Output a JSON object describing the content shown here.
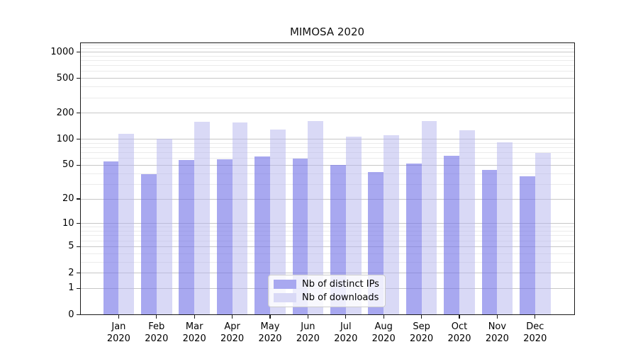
{
  "chart_data": {
    "type": "bar",
    "title": "MIMOSA 2020",
    "categories": [
      "Jan 2020",
      "Feb 2020",
      "Mar 2020",
      "Apr 2020",
      "May 2020",
      "Jun 2020",
      "Jul 2020",
      "Aug 2020",
      "Sep 2020",
      "Oct 2020",
      "Nov 2020",
      "Dec 2020"
    ],
    "series": [
      {
        "name": "Nb of distinct IPs",
        "color": "#a8a8f0",
        "fill": "rgba(115,115,231,0.62)",
        "values": [
          55,
          39,
          57,
          59,
          63,
          60,
          50,
          42,
          52,
          65,
          44,
          37
        ]
      },
      {
        "name": "Nb of downloads",
        "color": "#d9d9f6",
        "fill": "rgba(179,179,237,0.5)",
        "values": [
          116,
          102,
          160,
          157,
          130,
          162,
          107,
          111,
          163,
          128,
          92,
          70
        ]
      }
    ],
    "y_scale": "log10(value+1)",
    "y_ticks": [
      0,
      1,
      2,
      5,
      10,
      20,
      50,
      100,
      200,
      500,
      1000
    ],
    "y_minor_ticks": [
      3,
      4,
      6,
      7,
      8,
      9,
      30,
      40,
      60,
      70,
      80,
      90,
      300,
      400,
      600,
      700,
      800,
      900,
      1100,
      1200
    ],
    "ylim": [
      0,
      1300
    ],
    "grid": true,
    "legend_position": "inside-bottom-center",
    "colors": {
      "grid_major": "#c7c7c7",
      "grid_minor": "#ebebeb",
      "axis": "#1a1a1a",
      "text": "#000000",
      "background": "#ffffff"
    }
  }
}
